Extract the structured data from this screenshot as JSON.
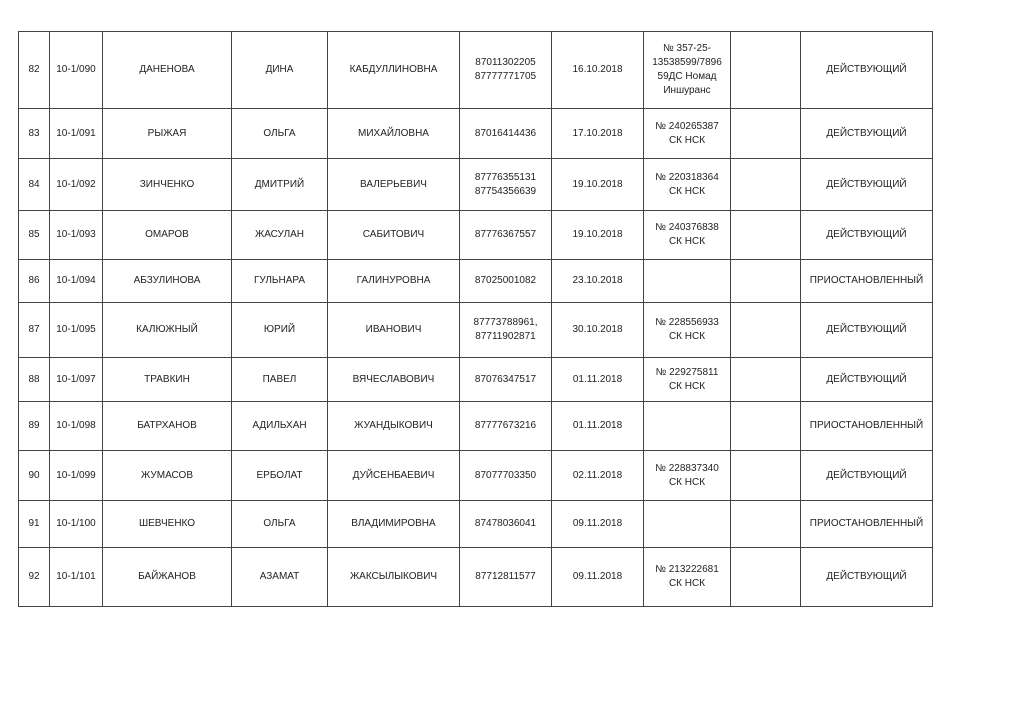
{
  "rows": [
    {
      "n": "82",
      "code": "10-1/090",
      "last": "ДАНЕНОВА",
      "first": "ДИНА",
      "patronymic": "КАБДУЛЛИНОВНА",
      "phone": "87011302205\n87777771705",
      "date": "16.10.2018",
      "policy": "№ 357-25-\n13538599/7896\n59ДС Номад\nИншуранс",
      "extra": "",
      "status": "ДЕЙСТВУЮЩИЙ"
    },
    {
      "n": "83",
      "code": "10-1/091",
      "last": "РЫЖАЯ",
      "first": "ОЛЬГА",
      "patronymic": "МИХАЙЛОВНА",
      "phone": "87016414436",
      "date": "17.10.2018",
      "policy": "№ 240265387\nСК НСК",
      "extra": "",
      "status": "ДЕЙСТВУЮЩИЙ"
    },
    {
      "n": "84",
      "code": "10-1/092",
      "last": "ЗИНЧЕНКО",
      "first": "ДМИТРИЙ",
      "patronymic": "ВАЛЕРЬЕВИЧ",
      "phone": "87776355131\n87754356639",
      "date": "19.10.2018",
      "policy": "№ 220318364\nСК НСК",
      "extra": "",
      "status": "ДЕЙСТВУЮЩИЙ"
    },
    {
      "n": "85",
      "code": "10-1/093",
      "last": "ОМАРОВ",
      "first": "ЖАСУЛАН",
      "patronymic": "САБИТОВИЧ",
      "phone": "87776367557",
      "date": "19.10.2018",
      "policy": "№ 240376838\nСК НСК",
      "extra": "",
      "status": "ДЕЙСТВУЮЩИЙ"
    },
    {
      "n": "86",
      "code": "10-1/094",
      "last": "АБЗУЛИНОВА",
      "first": "ГУЛЬНАРА",
      "patronymic": "ГАЛИНУРОВНА",
      "phone": "87025001082",
      "date": "23.10.2018",
      "policy": "",
      "extra": "",
      "status": "ПРИОСТАНОВЛЕННЫЙ"
    },
    {
      "n": "87",
      "code": "10-1/095",
      "last": "КАЛЮЖНЫЙ",
      "first": "ЮРИЙ",
      "patronymic": "ИВАНОВИЧ",
      "phone": "87773788961,\n87711902871",
      "date": "30.10.2018",
      "policy": "№ 228556933\nСК НСК",
      "extra": "",
      "status": "ДЕЙСТВУЮЩИЙ"
    },
    {
      "n": "88",
      "code": "10-1/097",
      "last": "ТРАВКИН",
      "first": "ПАВЕЛ",
      "patronymic": "ВЯЧЕСЛАВОВИЧ",
      "phone": "87076347517",
      "date": "01.11.2018",
      "policy": "№  229275811\nСК НСК",
      "extra": "",
      "status": "ДЕЙСТВУЮЩИЙ"
    },
    {
      "n": "89",
      "code": "10-1/098",
      "last": "БАТРХАНОВ",
      "first": "АДИЛЬХАН",
      "patronymic": "ЖУАНДЫКОВИЧ",
      "phone": "87777673216",
      "date": "01.11.2018",
      "policy": "",
      "extra": "",
      "status": "ПРИОСТАНОВЛЕННЫЙ"
    },
    {
      "n": "90",
      "code": "10-1/099",
      "last": "ЖУМАСОВ",
      "first": "ЕРБОЛАТ",
      "patronymic": "ДУЙСЕНБАЕВИЧ",
      "phone": "87077703350",
      "date": "02.11.2018",
      "policy": "№  228837340\nСК НСК",
      "extra": "",
      "status": "ДЕЙСТВУЮЩИЙ"
    },
    {
      "n": "91",
      "code": "10-1/100",
      "last": "ШЕВЧЕНКО",
      "first": "ОЛЬГА",
      "patronymic": "ВЛАДИМИРОВНА",
      "phone": "87478036041",
      "date": "09.11.2018",
      "policy": "",
      "extra": "",
      "status": "ПРИОСТАНОВЛЕННЫЙ"
    },
    {
      "n": "92",
      "code": "10-1/101",
      "last": "БАЙЖАНОВ",
      "first": "АЗАМАТ",
      "patronymic": "ЖАКСЫЛЫКОВИЧ",
      "phone": "87712811577",
      "date": "09.11.2018",
      "policy": "№ 213222681\nСК НСК",
      "extra": "",
      "status": "ДЕЙСТВУЮЩИЙ"
    }
  ]
}
